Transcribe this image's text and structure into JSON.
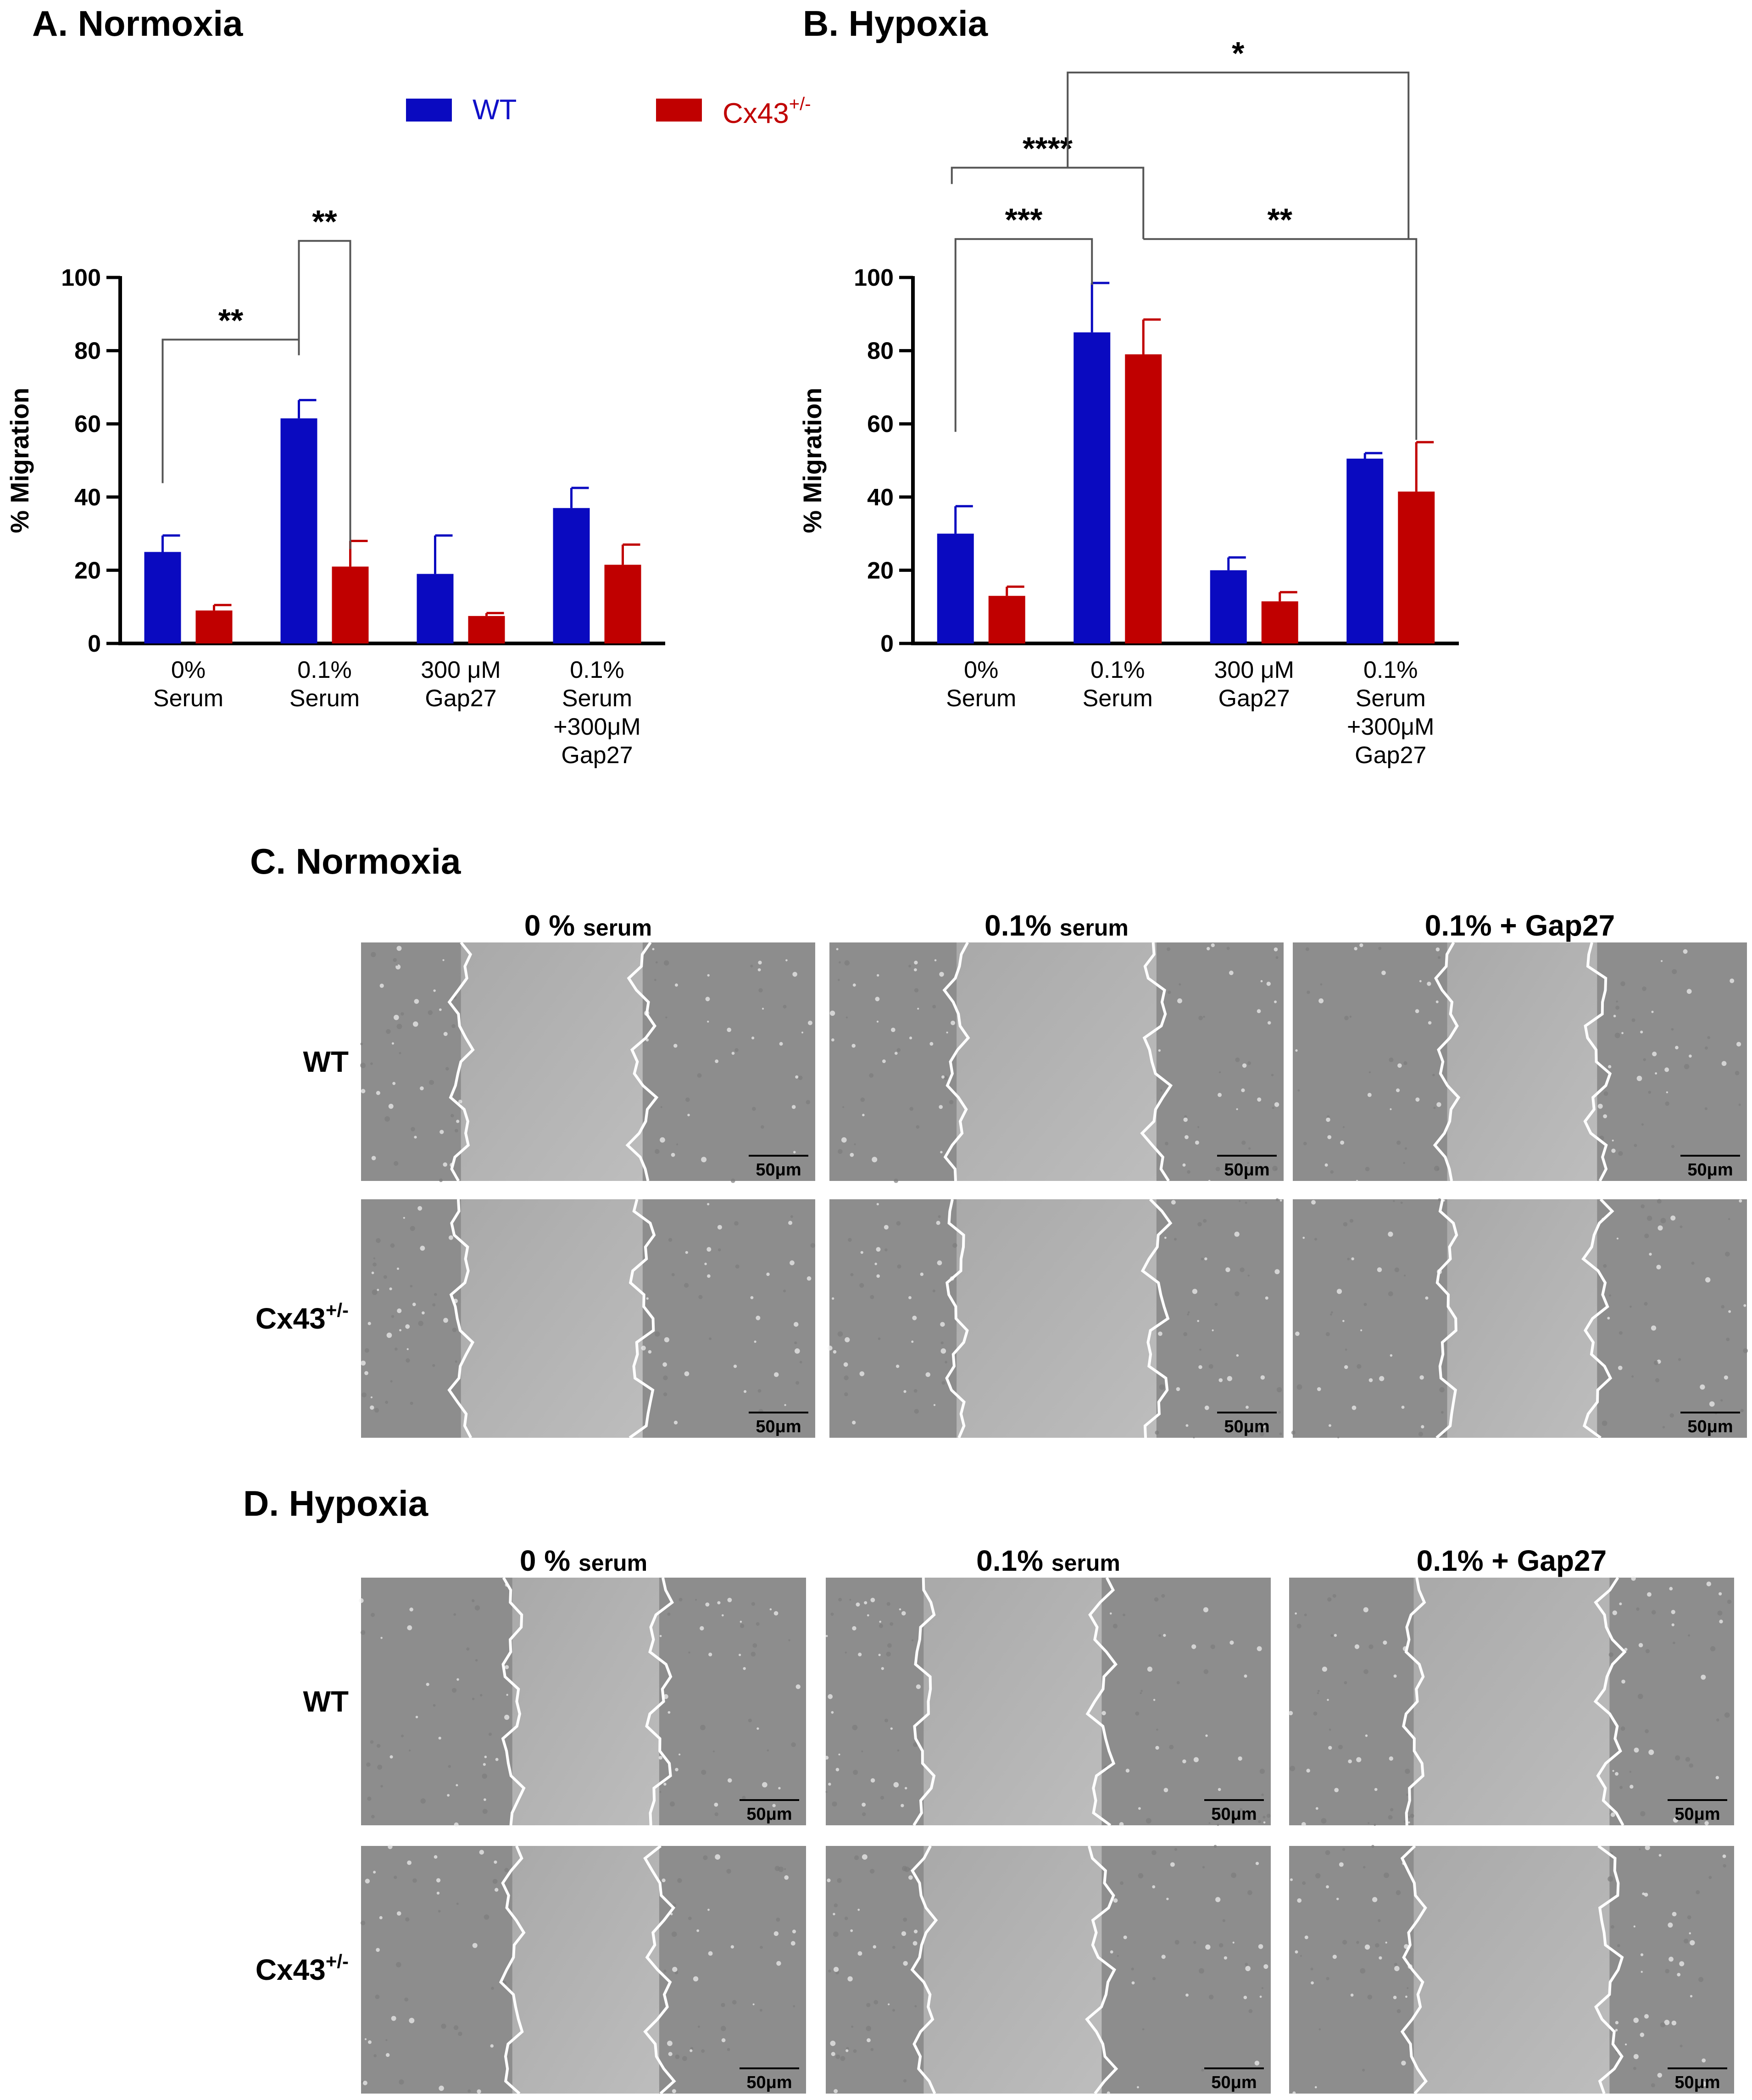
{
  "chart_data": [
    {
      "type": "bar",
      "title": "A. Normoxia",
      "ylabel": "% Migration",
      "xlabel": "",
      "ylim": [
        0,
        100
      ],
      "yticks": [
        "0",
        "20",
        "40",
        "60",
        "80",
        "100"
      ],
      "categories": [
        [
          "0%",
          "Serum"
        ],
        [
          "0.1%",
          "Serum"
        ],
        [
          "300 μM",
          "Gap27"
        ],
        [
          "0.1%",
          "Serum",
          "+300μM",
          "Gap27"
        ]
      ],
      "series": [
        {
          "name": "WT",
          "color": "#0a0ac0",
          "values": [
            25,
            61.5,
            19,
            37
          ],
          "errors": [
            4.5,
            5,
            10.5,
            5.5
          ]
        },
        {
          "name": "Cx43+/-",
          "color": "#c00000",
          "values": [
            9,
            21,
            7.5,
            21.5
          ],
          "errors": [
            1.5,
            7,
            0.8,
            5.5
          ]
        }
      ],
      "significance": [
        {
          "label": "**",
          "from": "0% Serum WT",
          "to": "0.1% Serum WT"
        },
        {
          "label": "**",
          "from": "0.1% Serum WT",
          "to": "0.1% Serum Cx43+/-"
        }
      ]
    },
    {
      "type": "bar",
      "title": "B. Hypoxia",
      "ylabel": "% Migration",
      "xlabel": "",
      "ylim": [
        0,
        100
      ],
      "yticks": [
        "0",
        "20",
        "40",
        "60",
        "80",
        "100"
      ],
      "categories": [
        [
          "0%",
          "Serum"
        ],
        [
          "0.1%",
          "Serum"
        ],
        [
          "300 μM",
          "Gap27"
        ],
        [
          "0.1%",
          "Serum",
          "+300μM",
          "Gap27"
        ]
      ],
      "series": [
        {
          "name": "WT",
          "color": "#0a0ac0",
          "values": [
            30,
            85,
            20,
            50.5
          ],
          "errors": [
            7.5,
            13.5,
            3.5,
            1.5
          ]
        },
        {
          "name": "Cx43+/-",
          "color": "#c00000",
          "values": [
            13,
            79,
            11.5,
            41.5
          ],
          "errors": [
            2.5,
            9.5,
            2.5,
            13.5
          ]
        }
      ],
      "significance": [
        {
          "label": "***",
          "from": "0% Serum WT",
          "to": "0.1% Serum WT"
        },
        {
          "label": "****",
          "from": "0% Serum Cx43+/-",
          "to": "0.1% Serum Cx43+/-"
        },
        {
          "label": "**",
          "from": "0.1% Serum Cx43+/-",
          "to": "0.1% Serum +300μM Gap27 Cx43+/-"
        },
        {
          "label": "*",
          "from": "0.1% Serum",
          "to": "0.1% Serum +300μM Gap27"
        }
      ]
    }
  ],
  "legend": {
    "items": [
      {
        "label": "WT",
        "color": "#0a0ac0",
        "text_color": "#1010c8"
      },
      {
        "label_main": "Cx43",
        "label_sup": "+/-",
        "color": "#c00000",
        "text_color": "#c00000"
      }
    ]
  },
  "micrographs": {
    "panels": [
      {
        "title": "C. Normoxia"
      },
      {
        "title": "D. Hypoxia"
      }
    ],
    "columns": [
      {
        "main": "0 %",
        "small": "serum"
      },
      {
        "main": "0.1%",
        "small": "serum"
      },
      {
        "main": "0.1% + Gap27",
        "small": ""
      }
    ],
    "rows": [
      {
        "main": "WT",
        "sup": ""
      },
      {
        "main": "Cx43",
        "sup": "+/-"
      }
    ],
    "scale_bar_label": "50μm"
  }
}
